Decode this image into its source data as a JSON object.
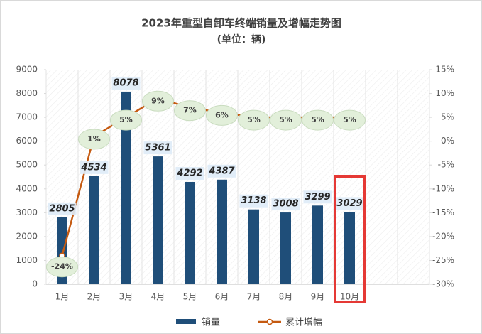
{
  "chart_data": {
    "type": "bar_line",
    "title": "2023年重型自卸车终端销量及增幅走势图",
    "subtitle": "(单位：辆)",
    "categories": [
      "1月",
      "2月",
      "3月",
      "4月",
      "5月",
      "6月",
      "7月",
      "8月",
      "9月",
      "10月",
      null,
      null
    ],
    "series": [
      {
        "name": "销量",
        "type": "bar",
        "color": "#1f4e79",
        "values": [
          2805,
          4534,
          8078,
          5361,
          4292,
          4387,
          3138,
          3008,
          3299,
          3029,
          null,
          null
        ]
      },
      {
        "name": "累计增幅",
        "type": "line",
        "axis": "y2",
        "color": "#c55a11",
        "values": [
          -24,
          1,
          5,
          9,
          7,
          6,
          5,
          5,
          5,
          5,
          null,
          null
        ],
        "value_labels": [
          "-24%",
          "1%",
          "5%",
          "9%",
          "7%",
          "6%",
          "5%",
          "5%",
          "5%",
          "5%",
          null,
          null
        ]
      }
    ],
    "ylim": [
      0,
      9000
    ],
    "yticks": [
      0,
      1000,
      2000,
      3000,
      4000,
      5000,
      6000,
      7000,
      8000,
      9000
    ],
    "y2lim": [
      -30,
      15
    ],
    "y2ticks": [
      {
        "value": -30,
        "label": "-30%"
      },
      {
        "value": -25,
        "label": "-25%"
      },
      {
        "value": -20,
        "label": "-20%"
      },
      {
        "value": -15,
        "label": "-15%"
      },
      {
        "value": -10,
        "label": "-10%"
      },
      {
        "value": -5,
        "label": "-5%"
      },
      {
        "value": 0,
        "label": "0%"
      },
      {
        "value": 5,
        "label": "5%"
      },
      {
        "value": 10,
        "label": "10%"
      },
      {
        "value": 15,
        "label": "15%"
      }
    ],
    "legend": "bottom"
  }
}
